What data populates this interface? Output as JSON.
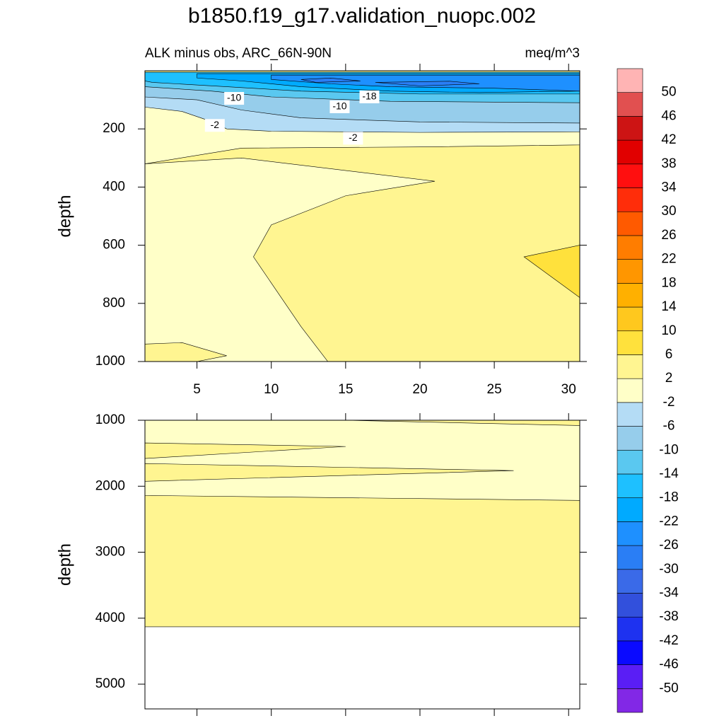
{
  "colorbar": {
    "levels": [
      -50,
      -46,
      -42,
      -38,
      -34,
      -30,
      -26,
      -22,
      -18,
      -14,
      -10,
      -6,
      -2,
      2,
      6,
      10,
      14,
      18,
      22,
      26,
      30,
      34,
      38,
      42,
      46,
      50
    ],
    "colors": [
      "#8228e6",
      "#5a1ef5",
      "#0a0aff",
      "#1e32f0",
      "#3250dc",
      "#3a6ae8",
      "#2a7ef5",
      "#1e90ff",
      "#00aaff",
      "#1ec0ff",
      "#5ac8f0",
      "#96cdeb",
      "#b4dcf5",
      "#ffffc8",
      "#fff591",
      "#ffe13c",
      "#ffc81e",
      "#ffb000",
      "#ff9600",
      "#ff7d00",
      "#ff5a00",
      "#ff2d0a",
      "#ff0f0f",
      "#e10000",
      "#cd1414",
      "#e15050",
      "#ffb4b4"
    ]
  },
  "chart_data": [
    {
      "type": "contour",
      "title": "b1850.f19_g17.validation_nuopc.002",
      "subtitle_left": "ALK minus obs, ARC_66N-90N",
      "subtitle_right": "meq/m^3",
      "ylabel": "depth",
      "xlim": [
        1.5,
        30.75
      ],
      "ylim": [
        0,
        1000
      ],
      "xticks": [
        5,
        10,
        15,
        20,
        25,
        30
      ],
      "yticks": [
        200,
        400,
        600,
        800,
        1000
      ],
      "regions": [
        {
          "range": [
            2,
            6
          ],
          "points": [
            [
              1.5,
              0
            ],
            [
              30.75,
              0
            ],
            [
              30.75,
              1000
            ],
            [
              1.5,
              1000
            ]
          ]
        },
        {
          "range": [
            -2,
            2
          ],
          "points": [
            [
              1.5,
              100
            ],
            [
              30.75,
              100
            ],
            [
              30.75,
              255
            ],
            [
              20,
              262
            ],
            [
              8,
              266
            ],
            [
              1.5,
              320
            ]
          ]
        },
        {
          "range": [
            -2,
            2
          ],
          "points": [
            [
              1.5,
              320
            ],
            [
              8,
              300
            ],
            [
              21,
              380
            ],
            [
              15,
              430
            ],
            [
              10,
              530
            ],
            [
              8.8,
              640
            ],
            [
              12,
              880
            ],
            [
              13.8,
              1000
            ],
            [
              1.5,
              1000
            ]
          ]
        },
        {
          "range": [
            2,
            6
          ],
          "points": [
            [
              1.5,
              940
            ],
            [
              4,
              935
            ],
            [
              7,
              980
            ],
            [
              5,
              1000
            ],
            [
              1.5,
              1000
            ]
          ]
        },
        {
          "range": [
            6,
            10
          ],
          "points": [
            [
              30.75,
              600
            ],
            [
              27,
              640
            ],
            [
              30.75,
              780
            ]
          ]
        },
        {
          "range": [
            -6,
            -2
          ],
          "points": [
            [
              1.5,
              20
            ],
            [
              30.75,
              20
            ],
            [
              30.75,
              210
            ],
            [
              20,
              212
            ],
            [
              10,
              208
            ],
            [
              7,
              200
            ],
            [
              6,
              175
            ],
            [
              4,
              140
            ],
            [
              1.5,
              125
            ]
          ]
        },
        {
          "range": [
            -10,
            -6
          ],
          "points": [
            [
              1.5,
              15
            ],
            [
              30.75,
              15
            ],
            [
              30.75,
              180
            ],
            [
              20,
              176
            ],
            [
              12,
              162
            ],
            [
              8,
              135
            ],
            [
              5,
              100
            ],
            [
              1.5,
              90
            ]
          ]
        },
        {
          "range": [
            -14,
            -10
          ],
          "points": [
            [
              1.5,
              10
            ],
            [
              30.75,
              10
            ],
            [
              30.75,
              110
            ],
            [
              18,
              105
            ],
            [
              10,
              90
            ],
            [
              6,
              70
            ],
            [
              1.5,
              55
            ]
          ]
        },
        {
          "range": [
            -18,
            -14
          ],
          "points": [
            [
              1.5,
              5
            ],
            [
              30.75,
              5
            ],
            [
              30.75,
              80
            ],
            [
              20,
              80
            ],
            [
              12,
              70
            ],
            [
              7,
              55
            ],
            [
              2,
              40
            ],
            [
              1.5,
              35
            ]
          ]
        },
        {
          "range": [
            -22,
            -18
          ],
          "points": [
            [
              5,
              10
            ],
            [
              30.75,
              10
            ],
            [
              30.75,
              70
            ],
            [
              24,
              75
            ],
            [
              18,
              70
            ],
            [
              12,
              55
            ],
            [
              8,
              35
            ],
            [
              5,
              25
            ]
          ]
        },
        {
          "range": [
            -26,
            -22
          ],
          "points": [
            [
              10,
              15
            ],
            [
              30.75,
              15
            ],
            [
              30.75,
              70
            ],
            [
              25,
              60
            ],
            [
              18,
              55
            ],
            [
              14,
              45
            ],
            [
              10,
              30
            ]
          ]
        },
        {
          "range": [
            -30,
            -26
          ],
          "points": [
            [
              12,
              30
            ],
            [
              14,
              25
            ],
            [
              16,
              35
            ],
            [
              13,
              40
            ]
          ]
        },
        {
          "range": [
            -30,
            -26
          ],
          "points": [
            [
              17,
              40
            ],
            [
              22,
              36
            ],
            [
              24,
              45
            ],
            [
              20,
              52
            ]
          ]
        }
      ],
      "contour_labels": [
        {
          "value": -10,
          "x": 7.5,
          "y": 95
        },
        {
          "value": -18,
          "x": 16.6,
          "y": 90
        },
        {
          "value": -10,
          "x": 14.6,
          "y": 124
        },
        {
          "value": -2,
          "x": 6.2,
          "y": 188
        },
        {
          "value": -2,
          "x": 15.5,
          "y": 232
        }
      ]
    },
    {
      "type": "contour",
      "ylabel": "depth",
      "xlim": [
        1.5,
        30.75
      ],
      "ylim": [
        1000,
        5375
      ],
      "xticks": [
        5,
        10,
        15,
        20,
        25,
        30
      ],
      "yticks": [
        1000,
        2000,
        3000,
        4000,
        5000
      ],
      "regions": [
        {
          "range": [
            2,
            6
          ],
          "points": [
            [
              1.5,
              1000
            ],
            [
              30.75,
              1000
            ],
            [
              30.75,
              4130
            ],
            [
              1.5,
              4130
            ]
          ]
        },
        {
          "range": [
            -2,
            2
          ],
          "points": [
            [
              1.5,
              1000
            ],
            [
              30.75,
              1000
            ],
            [
              30.75,
              2215
            ],
            [
              1.5,
              2140
            ]
          ]
        },
        {
          "range": [
            2,
            6
          ],
          "points": [
            [
              15,
              1000
            ],
            [
              30.75,
              1000
            ],
            [
              30.75,
              1080
            ]
          ]
        },
        {
          "range": [
            2,
            6
          ],
          "points": [
            [
              1.5,
              1344
            ],
            [
              15,
              1398
            ],
            [
              1.5,
              1580
            ]
          ]
        },
        {
          "range": [
            2,
            6
          ],
          "points": [
            [
              1.5,
              1656
            ],
            [
              26.3,
              1763
            ],
            [
              1.5,
              1925
            ]
          ]
        }
      ]
    }
  ]
}
